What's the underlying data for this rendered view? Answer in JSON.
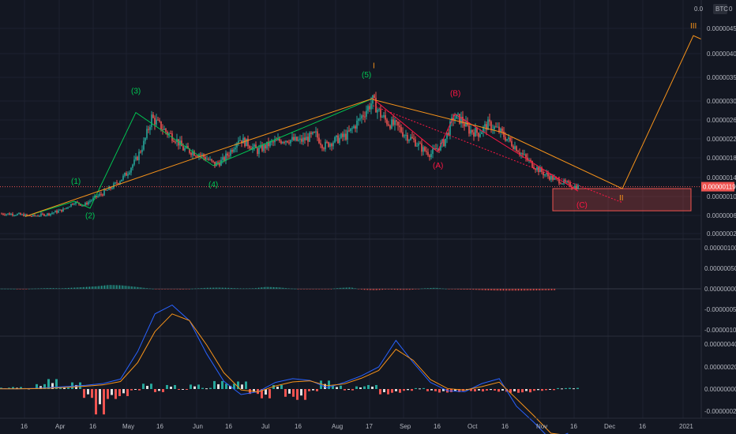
{
  "colors": {
    "background": "#131722",
    "grid": "#1e2230",
    "up": "#26a69a",
    "down": "#ef5350",
    "orange": "#f7931a",
    "green": "#00c853",
    "red": "#ff1744",
    "blue": "#2962ff",
    "priceLine": "#ef5350",
    "zone": "#ef5350"
  },
  "header": {
    "scale_left": "0.0",
    "currency": "BTC",
    "scale_right": "0"
  },
  "current_price": "0.00000119",
  "chart_data": [
    {
      "type": "candlestick",
      "pane": "price",
      "y_ticks": [
        "0.00000450",
        "0.00000400",
        "0.00000350",
        "0.00000300",
        "0.00000260",
        "0.00000220",
        "0.00000180",
        "0.00000140",
        "0.00000100",
        "0.00000060",
        "0.00000025"
      ],
      "x_ticks": [
        "16",
        "Apr",
        "16",
        "May",
        "16",
        "Jun",
        "16",
        "Jul",
        "16",
        "Aug",
        "17",
        "Sep",
        "16",
        "Oct",
        "16",
        "Nov",
        "16",
        "Dec",
        "16",
        "2021"
      ],
      "series": [
        {
          "name": "",
          "points": [
            [
              0,
              6.3e-07
            ],
            [
              10,
              6.2e-07
            ],
            [
              20,
              5.8e-07
            ],
            [
              30,
              6.2e-07
            ],
            [
              40,
              7e-07
            ],
            [
              47,
              8.6e-07
            ],
            [
              53,
              7.9e-07
            ],
            [
              60,
              9.7e-07
            ],
            [
              70,
              1.16e-06
            ],
            [
              80,
              1.47e-06
            ],
            [
              86,
              1.75e-06
            ],
            [
              91,
              2.1e-06
            ],
            [
              96,
              2.65e-06
            ],
            [
              101,
              2.48e-06
            ],
            [
              106,
              2.32e-06
            ],
            [
              111,
              2.21e-06
            ],
            [
              116,
              1.98e-06
            ],
            [
              121,
              1.93e-06
            ],
            [
              126,
              1.88e-06
            ],
            [
              131,
              1.78e-06
            ],
            [
              136,
              1.65e-06
            ],
            [
              141,
              1.74e-06
            ],
            [
              146,
              1.94e-06
            ],
            [
              151,
              2.21e-06
            ],
            [
              157,
              2.09e-06
            ],
            [
              163,
              1.94e-06
            ],
            [
              171,
              2.09e-06
            ],
            [
              180,
              2.19e-06
            ],
            [
              190,
              2.15e-06
            ],
            [
              200,
              2.28e-06
            ],
            [
              205,
              2.04e-06
            ],
            [
              210,
              2.13e-06
            ],
            [
              220,
              2.28e-06
            ],
            [
              230,
              2.72e-06
            ],
            [
              236,
              3e-06
            ],
            [
              241,
              2.7e-06
            ],
            [
              246,
              2.53e-06
            ],
            [
              251,
              2.47e-06
            ],
            [
              256,
              2.3e-06
            ],
            [
              262,
              2.16e-06
            ],
            [
              268,
              1.96e-06
            ],
            [
              273,
              1.88e-06
            ],
            [
              281,
              2.12e-06
            ],
            [
              287,
              2.65e-06
            ],
            [
              292,
              2.6e-06
            ],
            [
              297,
              2.38e-06
            ],
            [
              303,
              2.32e-06
            ],
            [
              309,
              2.5e-06
            ],
            [
              315,
              2.39e-06
            ],
            [
              321,
              2.2e-06
            ],
            [
              327,
              2e-06
            ],
            [
              333,
              1.78e-06
            ],
            [
              339,
              1.6e-06
            ],
            [
              345,
              1.46e-06
            ],
            [
              351,
              1.36e-06
            ],
            [
              357,
              1.28e-06
            ],
            [
              363,
              1.2e-06
            ],
            [
              366,
              1.19e-06
            ]
          ]
        }
      ],
      "wave_labels": [
        "(1)",
        "(2)",
        "(3)",
        "(4)",
        "(5)",
        "I",
        "(A)",
        "(B)",
        "(C)",
        "II",
        "III"
      ],
      "zone": {
        "y_high": 1.15e-06,
        "y_low": 6.8e-07
      },
      "projection": [
        [
          236,
          3.03e-06
        ],
        [
          318,
          2.33e-06
        ],
        [
          394,
          1.15e-06
        ],
        [
          439,
          4.35e-06
        ],
        [
          444,
          4.28e-06
        ]
      ]
    },
    {
      "type": "bar",
      "pane": "histogram",
      "y_ticks": [
        "0.00000100",
        "0.00000050",
        "0.00000000",
        "-0.00000050",
        "-0.00000100"
      ],
      "values": [
        4e-09,
        1e-09,
        -3e-09,
        8e-09,
        1.9e-08,
        1.2e-08,
        2.8e-08,
        4.5e-08,
        6.5e-08,
        9.8e-08,
        8.8e-08,
        5.7e-08,
        2.1e-08,
        -1.1e-08,
        -2e-09,
        -1.8e-08,
        6e-09,
        2.4e-08,
        3.1e-08,
        2.2e-08,
        9e-09,
        1.4e-08,
        4.8e-08,
        3.7e-08,
        8e-09,
        -6e-09,
        -3e-09,
        -1.4e-08,
        2.2e-08,
        3.5e-08,
        -2.4e-08,
        -3.5e-08,
        -1.6e-08,
        -2.5e-08,
        -2.4e-08,
        1.2e-08,
        2.5e-08,
        -3e-09,
        -1.8e-08,
        -2.1e-08,
        -3.5e-08,
        -4.3e-08,
        -4.6e-08,
        -4.5e-08,
        -4.2e-08,
        -3.8e-08,
        -3.5e-08
      ]
    },
    {
      "type": "line",
      "pane": "oscillator",
      "y_ticks": [
        "0.00000040",
        "0.00000020",
        "0.00000000",
        "-0.00000020"
      ],
      "series": [
        {
          "name": "",
          "values": [
            2e-09,
            1e-09,
            3e-09,
            7e-09,
            1.2e-08,
            1.7e-08,
            2.5e-08,
            4.5e-08,
            1.7e-07,
            3.4e-07,
            3.8e-07,
            3.1e-07,
            1.6e-07,
            3.5e-08,
            -2.5e-08,
            -1.2e-08,
            3e-08,
            4.7e-08,
            3.9e-08,
            6e-09,
            3e-08,
            6e-08,
            1e-07,
            2.2e-07,
            1.2e-07,
            3e-08,
            -8e-09,
            -1.2e-08,
            2.5e-08,
            4.7e-08,
            -7.8e-08,
            -1.5e-07,
            -2.3e-07,
            -2e-07
          ]
        },
        {
          "name": "",
          "values": [
            1e-09,
            1e-09,
            2e-09,
            4e-09,
            8e-09,
            1.3e-08,
            1.9e-08,
            3.4e-08,
            1.2e-07,
            2.6e-07,
            3.4e-07,
            3.1e-07,
            2e-07,
            7.4e-08,
            -4e-09,
            -1.3e-08,
            1.4e-08,
            3.2e-08,
            3.7e-08,
            1.5e-08,
            2.3e-08,
            4.9e-08,
            8.4e-08,
            1.8e-07,
            1.3e-07,
            4.3e-08,
            2e-09,
            -5e-09,
            1.1e-08,
            3.1e-08,
            -4.4e-08,
            -1.2e-07,
            -2e-07,
            -2.1e-07
          ]
        }
      ],
      "histogram": [
        6e-09,
        9e-09,
        4e-09,
        2.2e-08,
        4.5e-08,
        8e-09,
        3e-08,
        -4e-08,
        -1.15e-07,
        -4.5e-08,
        -3.2e-08,
        -6e-09,
        2.4e-08,
        -1.4e-08,
        1.8e-08,
        -3e-09,
        2e-08,
        5e-09,
        3.6e-08,
        2.4e-08,
        3.4e-08,
        -2.2e-08,
        -4.2e-08,
        1.8e-08,
        -3.5e-08,
        -4.9e-08,
        -1e-08,
        3.8e-08,
        1.5e-08,
        -6e-09,
        1.2e-08,
        1.8e-08,
        -2.4e-08,
        -1.7e-08,
        -8e-09,
        4e-09,
        -1e-08,
        -1.6e-08,
        -1.4e-08,
        -9e-09,
        -1.1e-08,
        -7e-09,
        -1.2e-08,
        -1.7e-08,
        -1.5e-08,
        -8e-09,
        -5e-09,
        4e-09,
        5e-09
      ]
    }
  ]
}
